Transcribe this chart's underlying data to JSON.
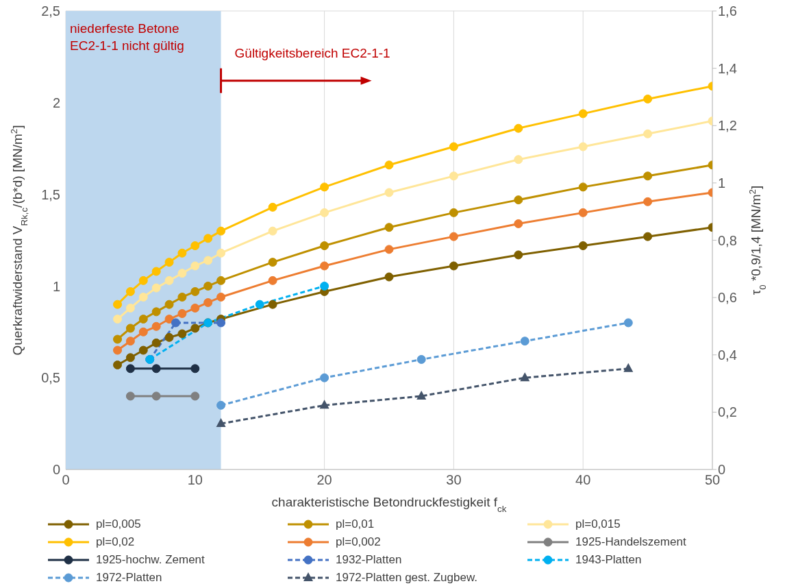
{
  "chart_data": {
    "type": "line",
    "xlabel": "charakteristische Betondruckfestigkeit f$_{ck}$",
    "ylabel": "Querkraftwiderstand V$_{Rk,c}$/(b*d) [MN/m$^{2}$]",
    "y2label": "τ$_{0}$ *0,9/1,4  [MN/m$^{2}$]",
    "xlim": [
      0,
      50
    ],
    "xticks": [
      0,
      10,
      20,
      30,
      40,
      50
    ],
    "ylim": [
      0,
      2.5
    ],
    "yticks": [
      0,
      {
        "value": 0.5,
        "label": "0,5"
      },
      1,
      {
        "value": 1.5,
        "label": "1,5"
      },
      2,
      {
        "value": 2.5,
        "label": "2,5"
      }
    ],
    "y2lim": [
      0,
      1.6
    ],
    "y2ticks": [
      0,
      {
        "value": 0.2,
        "label": "0,2"
      },
      {
        "value": 0.4,
        "label": "0,4"
      },
      {
        "value": 0.6,
        "label": "0,6"
      },
      {
        "value": 0.8,
        "label": "0,8"
      },
      1,
      {
        "value": 1.2,
        "label": "1,2"
      },
      {
        "value": 1.4,
        "label": "1,4"
      },
      {
        "value": 1.6,
        "label": "1,6"
      }
    ],
    "grid": true,
    "legend": "bottom",
    "marker": "circle",
    "line_style": "solid",
    "bands": [
      {
        "axis": "x",
        "from": 0,
        "to": 12,
        "label": "niederfeste Betone\nEC2-1-1 nicht gültig",
        "color": "#bdd7ee"
      }
    ],
    "annotations": [
      {
        "text": "Gültigkeitsbereich EC2-1-1",
        "x": 12,
        "y": 2.12
      }
    ],
    "series": [
      {
        "name": "pl=0,005",
        "color": "#7f6000",
        "x": [
          4,
          5,
          6,
          7,
          8,
          9,
          10,
          11,
          12,
          16,
          20,
          25,
          30,
          35,
          40,
          45,
          50
        ],
        "values": [
          0.57,
          0.61,
          0.65,
          0.69,
          0.72,
          0.74,
          0.77,
          0.8,
          0.82,
          0.9,
          0.97,
          1.05,
          1.11,
          1.17,
          1.22,
          1.27,
          1.32
        ]
      },
      {
        "name": "pl=0,01",
        "color": "#bf9000",
        "x": [
          4,
          5,
          6,
          7,
          8,
          9,
          10,
          11,
          12,
          16,
          20,
          25,
          30,
          35,
          40,
          45,
          50
        ],
        "values": [
          0.71,
          0.77,
          0.82,
          0.86,
          0.9,
          0.94,
          0.97,
          1.0,
          1.03,
          1.13,
          1.22,
          1.32,
          1.4,
          1.47,
          1.54,
          1.6,
          1.66
        ]
      },
      {
        "name": "pl=0,015",
        "color": "#ffe699",
        "x": [
          4,
          5,
          6,
          7,
          8,
          9,
          10,
          11,
          12,
          16,
          20,
          25,
          30,
          35,
          40,
          45,
          50
        ],
        "values": [
          0.82,
          0.88,
          0.94,
          0.99,
          1.03,
          1.07,
          1.11,
          1.14,
          1.18,
          1.3,
          1.4,
          1.51,
          1.6,
          1.69,
          1.76,
          1.83,
          1.9
        ]
      },
      {
        "name": "pl=0,02",
        "color": "#ffc000",
        "x": [
          4,
          5,
          6,
          7,
          8,
          9,
          10,
          11,
          12,
          16,
          20,
          25,
          30,
          35,
          40,
          45,
          50
        ],
        "values": [
          0.9,
          0.97,
          1.03,
          1.08,
          1.13,
          1.18,
          1.22,
          1.26,
          1.3,
          1.43,
          1.54,
          1.66,
          1.76,
          1.86,
          1.94,
          2.02,
          2.09
        ]
      },
      {
        "name": "pl=0,002",
        "color": "#ed7d31",
        "x": [
          4,
          5,
          6,
          7,
          8,
          9,
          10,
          11,
          12,
          16,
          20,
          25,
          30,
          35,
          40,
          45,
          50
        ],
        "values": [
          0.65,
          0.7,
          0.75,
          0.78,
          0.82,
          0.85,
          0.88,
          0.91,
          0.94,
          1.03,
          1.11,
          1.2,
          1.27,
          1.34,
          1.4,
          1.46,
          1.51
        ]
      },
      {
        "name": "1925-Handelszement",
        "color": "#808080",
        "x": [
          5,
          7,
          10
        ],
        "values": [
          0.4,
          0.4,
          0.4
        ]
      },
      {
        "name": "1925-hochw. Zement",
        "color": "#1f3046",
        "x": [
          5,
          7,
          10
        ],
        "values": [
          0.55,
          0.55,
          0.55
        ]
      },
      {
        "name": "1932-Platten",
        "color": "#4472c4",
        "line_style": "dashed",
        "x": [
          6.5,
          8.5,
          12
        ],
        "values": [
          0.6,
          0.8,
          0.8
        ]
      },
      {
        "name": "1943-Platten",
        "color": "#00b0f0",
        "line_style": "dashed",
        "x": [
          6.5,
          11,
          15,
          20
        ],
        "values": [
          0.6,
          0.8,
          0.9,
          1.0
        ]
      },
      {
        "name": "1972-Platten",
        "color": "#5b9bd5",
        "line_style": "dashed",
        "x": [
          12,
          20,
          27.5,
          35.5,
          43.5
        ],
        "values": [
          0.35,
          0.5,
          0.6,
          0.7,
          0.8
        ]
      },
      {
        "name": "1972-Platten gest. Zugbew.",
        "color": "#44546a",
        "line_style": "dashed",
        "marker": "triangle",
        "x": [
          12,
          20,
          27.5,
          35.5,
          43.5
        ],
        "values": [
          0.25,
          0.35,
          0.4,
          0.5,
          0.55
        ]
      }
    ]
  }
}
